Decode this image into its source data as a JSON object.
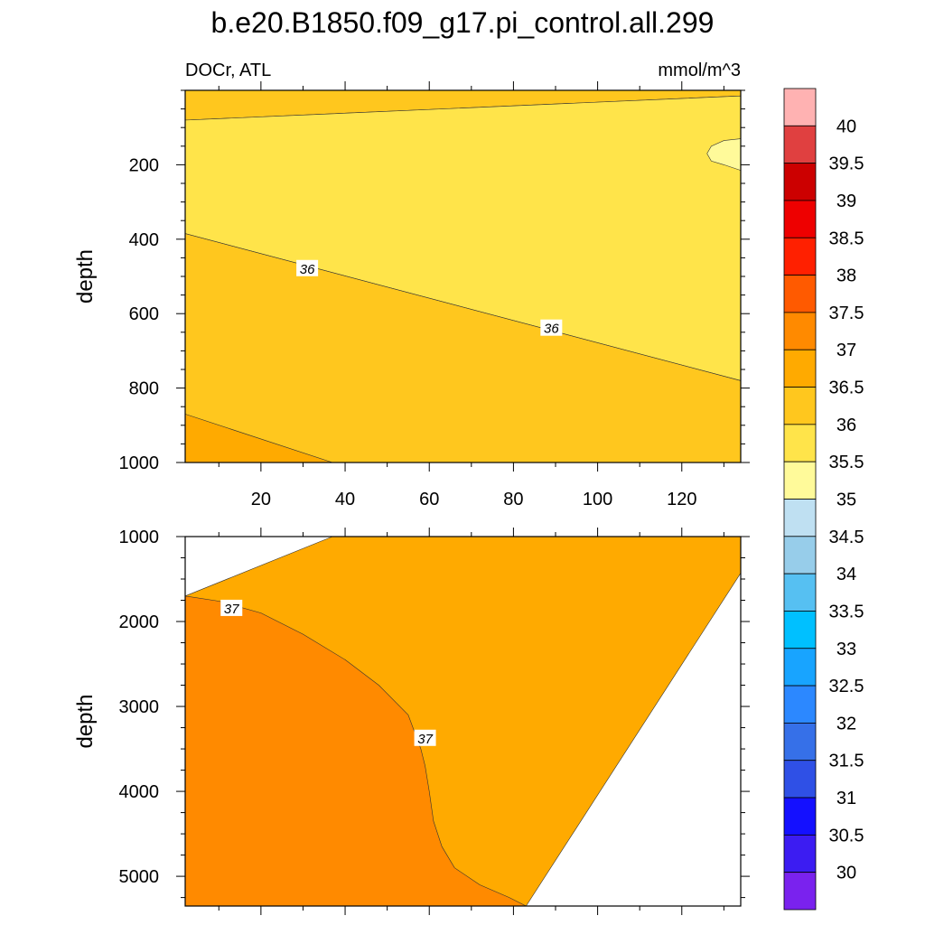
{
  "title": "b.e20.B1850.f09_g17.pi_control.all.299",
  "left_subtitle": "DOCr, ATL",
  "right_subtitle": "mmol/m^3",
  "colorbar": {
    "levels": [
      "40",
      "39.5",
      "39",
      "38.5",
      "38",
      "37.5",
      "37",
      "36.5",
      "36",
      "35.5",
      "35",
      "34.5",
      "34",
      "33.5",
      "33",
      "32.5",
      "32",
      "31.5",
      "31",
      "30.5",
      "30"
    ],
    "colors": [
      "#ffb2b2",
      "#e04040",
      "#cc0000",
      "#ee0000",
      "#ff2000",
      "#ff5a00",
      "#ff8a00",
      "#ffaa00",
      "#ffc71e",
      "#ffe44a",
      "#fffa9a",
      "#bfe0f2",
      "#97cdea",
      "#56c0f2",
      "#00c0ff",
      "#18a4ff",
      "#2c88ff",
      "#3670e8",
      "#2f50e6",
      "#1410ff",
      "#3c1cf2",
      "#7a22ee"
    ]
  },
  "chart_data": [
    {
      "type": "contour",
      "panel": "upper",
      "xlabel": "",
      "ylabel": "depth",
      "xlim": [
        2,
        134
      ],
      "ylim": [
        1000,
        0
      ],
      "xticks": [
        20,
        40,
        60,
        80,
        100,
        120
      ],
      "yticks": [
        200,
        400,
        600,
        800,
        1000
      ],
      "contour_labels": [
        {
          "text": "36",
          "x": 31,
          "depth": 480
        },
        {
          "text": "36",
          "x": 89,
          "depth": 640
        }
      ],
      "bands": [
        {
          "name": "36 - 36.5",
          "color": "#ffc71e",
          "x": [
            2,
            2,
            134,
            134
          ],
          "depth": [
            0,
            80,
            15,
            0
          ]
        },
        {
          "name": "35.5 - 36",
          "color": "#ffe44a",
          "x": [
            2,
            2,
            134,
            134
          ],
          "depth": [
            80,
            385,
            780,
            15
          ]
        },
        {
          "name": "35 - 35.5",
          "color": "#fffa9a",
          "x": [
            134,
            130,
            127,
            126,
            127,
            130,
            134
          ],
          "depth": [
            130,
            135,
            150,
            170,
            190,
            200,
            215
          ]
        },
        {
          "name": "36 - 36.5",
          "color": "#ffc71e",
          "x": [
            2,
            2,
            37,
            134,
            134
          ],
          "depth": [
            385,
            1000,
            1000,
            1000,
            780
          ]
        },
        {
          "name": "36.5 - 37",
          "color": "#ffaa00",
          "x": [
            2,
            2,
            37
          ],
          "depth": [
            870,
            1000,
            1000
          ]
        }
      ]
    },
    {
      "type": "contour",
      "panel": "lower",
      "xlabel": "",
      "ylabel": "depth",
      "xlim": [
        2,
        134
      ],
      "ylim": [
        5350,
        1000
      ],
      "xticks": [
        20,
        40,
        60,
        80,
        100,
        120
      ],
      "yticks": [
        1000,
        2000,
        3000,
        4000,
        5000
      ],
      "contour_labels": [
        {
          "text": "37",
          "x": 13,
          "depth": 1850
        },
        {
          "text": "37",
          "x": 59,
          "depth": 3380
        }
      ],
      "bands": [
        {
          "name": "36 - 36.5",
          "color": "#ffc71e",
          "x": [
            37,
            134,
            134
          ],
          "depth": [
            1000,
            1000,
            1430
          ]
        },
        {
          "name": "36.5 - 37",
          "color": "#ffaa00",
          "x": [
            2,
            2,
            37,
            134,
            134,
            83,
            2
          ],
          "depth": [
            1000,
            1700,
            1000,
            1000,
            1430,
            5350,
            5350
          ]
        },
        {
          "name": "37 - 37.5",
          "color": "#ff8a00",
          "x": [
            2,
            2,
            10,
            20,
            30,
            40,
            48,
            55,
            58,
            59,
            60,
            61,
            63,
            66,
            72,
            79,
            83,
            2
          ],
          "depth": [
            1700,
            1700,
            1760,
            1900,
            2150,
            2450,
            2750,
            3100,
            3500,
            3700,
            4000,
            4350,
            4650,
            4900,
            5100,
            5250,
            5350,
            5350
          ]
        }
      ]
    }
  ]
}
